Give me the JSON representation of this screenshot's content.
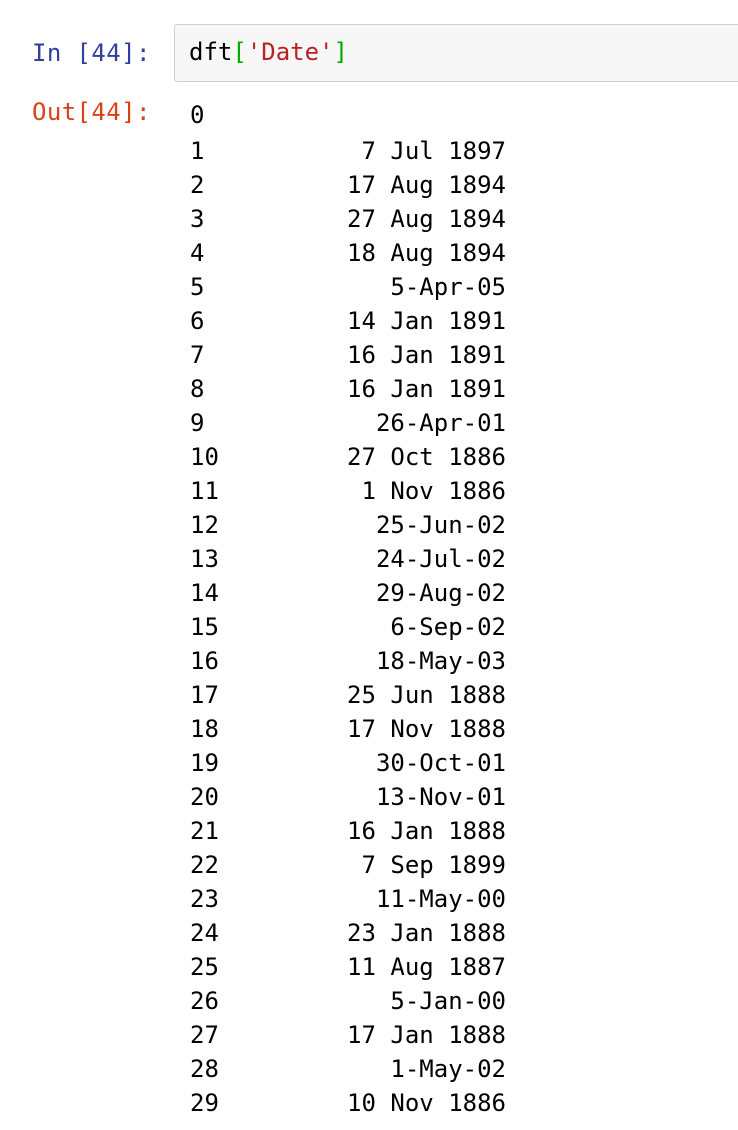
{
  "input_cell": {
    "prompt": "In [44]:",
    "code": {
      "var": "dft",
      "open_bracket": "[",
      "string": "'Date'",
      "close_bracket": "]"
    }
  },
  "output_cell": {
    "prompt": "Out[44]:",
    "rows": [
      {
        "index": "0",
        "value": ""
      },
      {
        "index": "1",
        "value": "7 Jul 1897"
      },
      {
        "index": "2",
        "value": "17 Aug 1894"
      },
      {
        "index": "3",
        "value": "27 Aug 1894"
      },
      {
        "index": "4",
        "value": "18 Aug 1894"
      },
      {
        "index": "5",
        "value": "5-Apr-05"
      },
      {
        "index": "6",
        "value": "14 Jan 1891"
      },
      {
        "index": "7",
        "value": "16 Jan 1891"
      },
      {
        "index": "8",
        "value": "16 Jan 1891"
      },
      {
        "index": "9",
        "value": "26-Apr-01"
      },
      {
        "index": "10",
        "value": "27 Oct 1886"
      },
      {
        "index": "11",
        "value": "1 Nov 1886"
      },
      {
        "index": "12",
        "value": "25-Jun-02"
      },
      {
        "index": "13",
        "value": "24-Jul-02"
      },
      {
        "index": "14",
        "value": "29-Aug-02"
      },
      {
        "index": "15",
        "value": "6-Sep-02"
      },
      {
        "index": "16",
        "value": "18-May-03"
      },
      {
        "index": "17",
        "value": "25 Jun 1888"
      },
      {
        "index": "18",
        "value": "17 Nov 1888"
      },
      {
        "index": "19",
        "value": "30-Oct-01"
      },
      {
        "index": "20",
        "value": "13-Nov-01"
      },
      {
        "index": "21",
        "value": "16 Jan 1888"
      },
      {
        "index": "22",
        "value": "7 Sep 1899"
      },
      {
        "index": "23",
        "value": "11-May-00"
      },
      {
        "index": "24",
        "value": "23 Jan 1888"
      },
      {
        "index": "25",
        "value": "11 Aug 1887"
      },
      {
        "index": "26",
        "value": "5-Jan-00"
      },
      {
        "index": "27",
        "value": "17 Jan 1888"
      },
      {
        "index": "28",
        "value": "1-May-02"
      },
      {
        "index": "29",
        "value": "10 Nov 1886"
      }
    ]
  }
}
